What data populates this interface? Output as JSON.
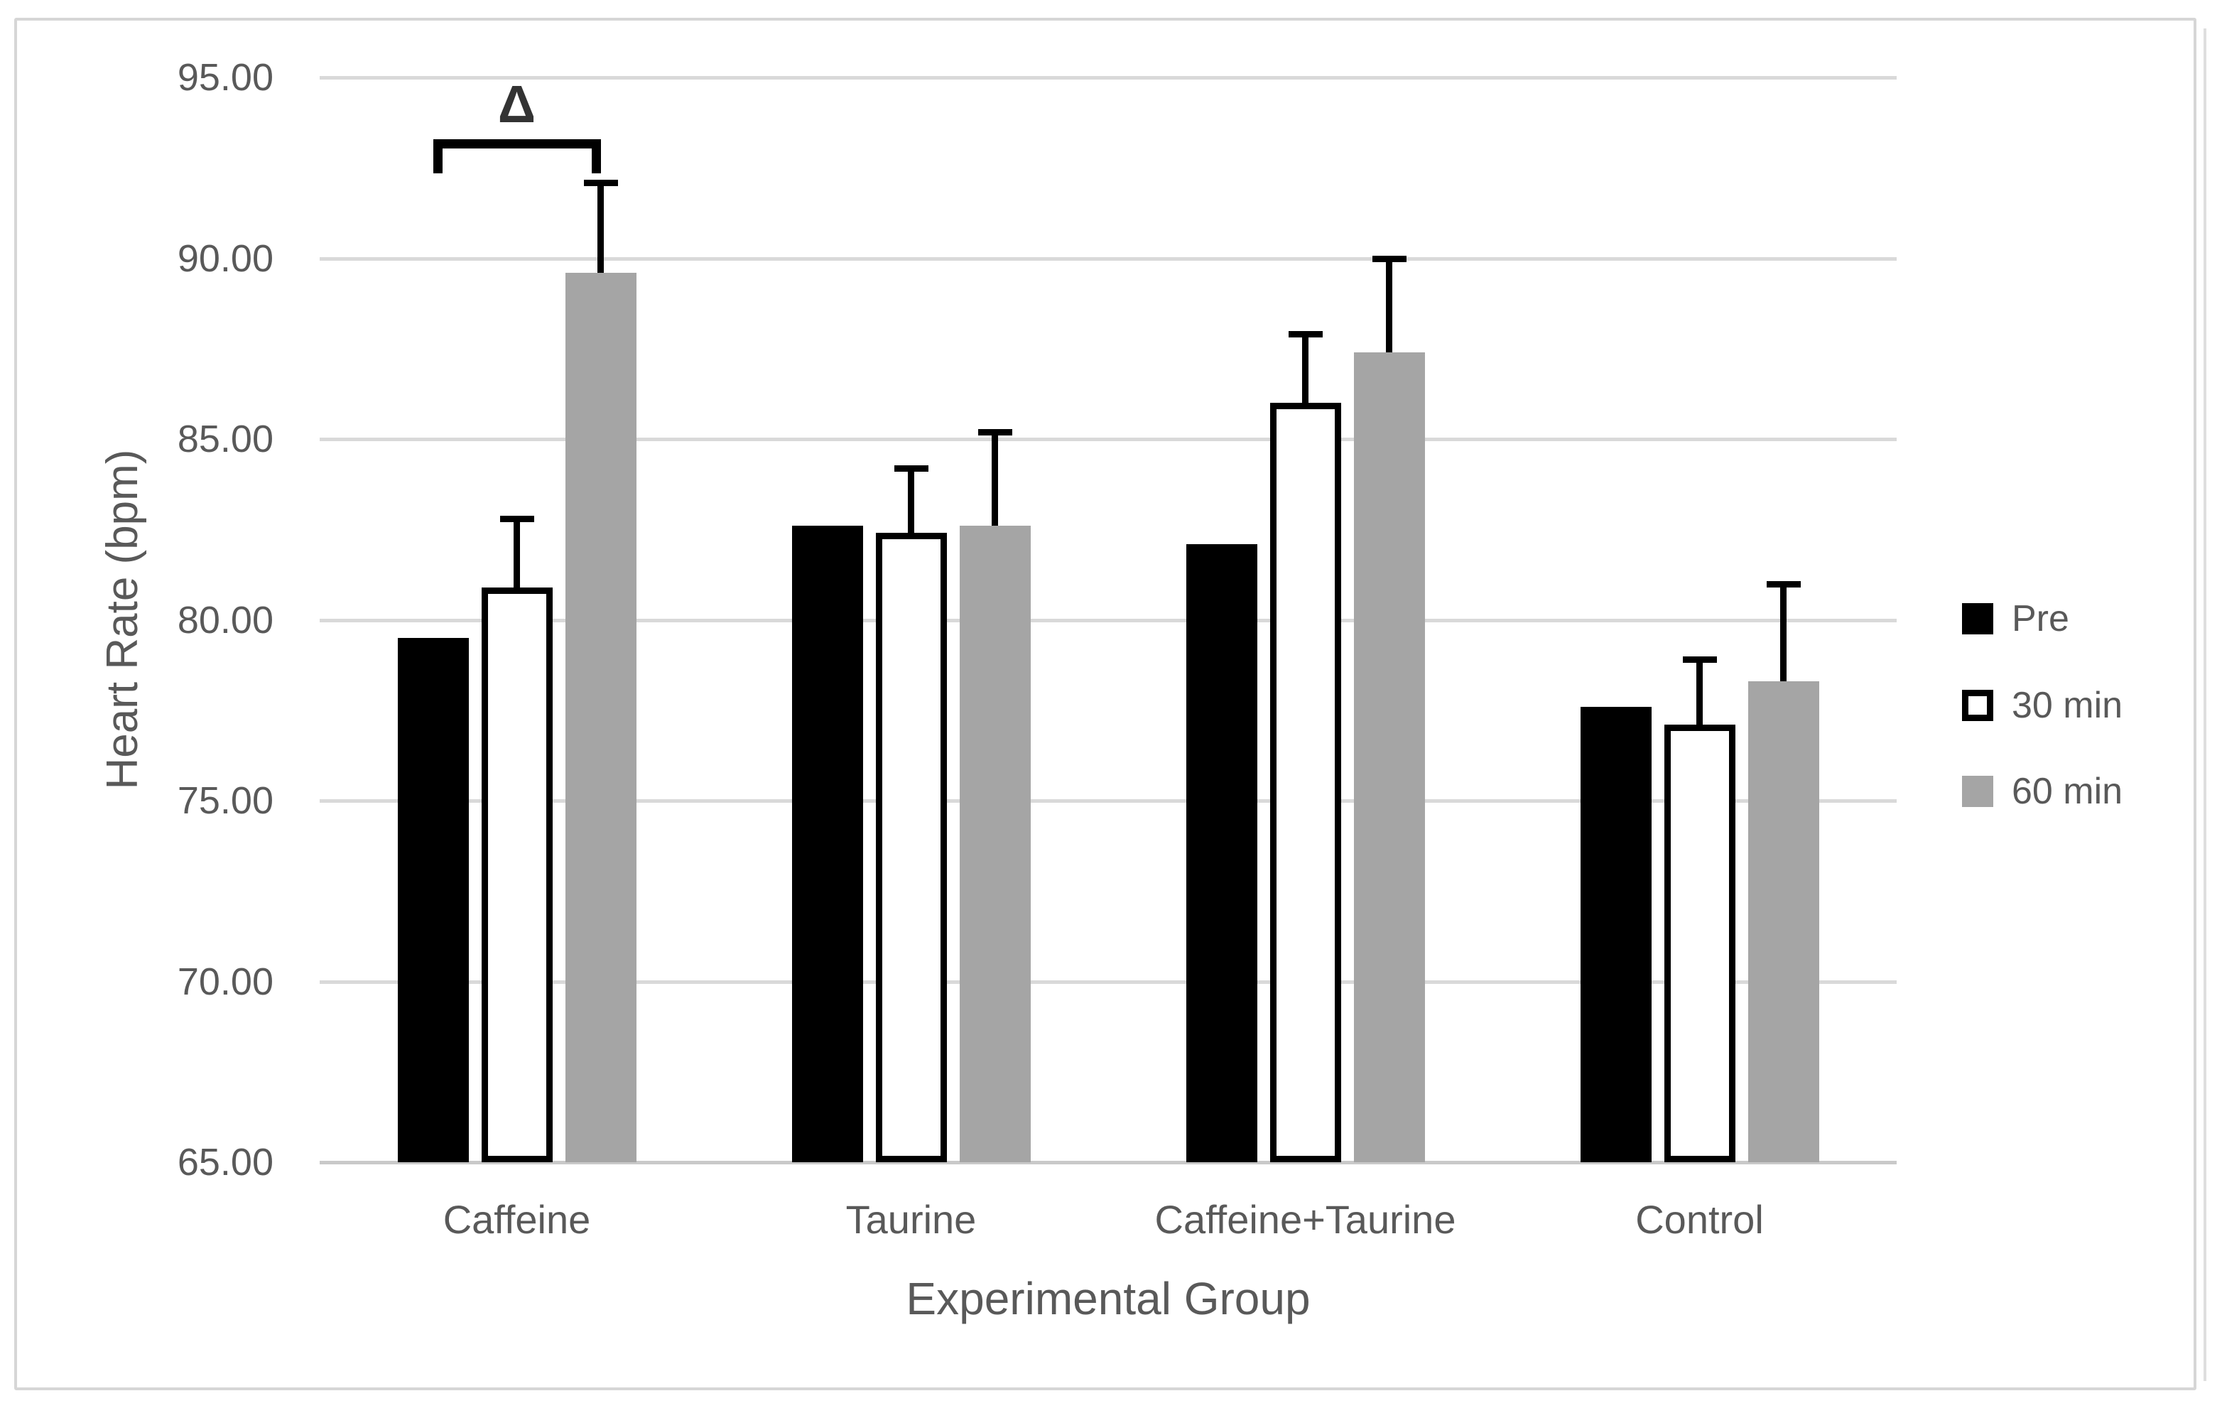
{
  "colors": {
    "background": "#ffffff",
    "frame_border": "#d6d6d6",
    "gridline": "#d9d9d9",
    "axis_text": "#595959",
    "error_bar": "#000000",
    "annotation": "#333333"
  },
  "chart_data": {
    "type": "bar",
    "xlabel": "Experimental Group",
    "ylabel": "Heart Rate (bpm)",
    "categories": [
      "Caffeine",
      "Taurine",
      "Caffeine+Taurine",
      "Control"
    ],
    "series": [
      {
        "name": "Pre",
        "fill": "#000000",
        "border": "#000000",
        "values": [
          79.5,
          82.6,
          82.1,
          77.6
        ],
        "errors": [
          0,
          0,
          0,
          0
        ]
      },
      {
        "name": "30 min",
        "fill": "#ffffff",
        "border": "#000000",
        "values": [
          80.9,
          82.4,
          86.0,
          77.1
        ],
        "errors": [
          1.9,
          1.8,
          1.9,
          1.8
        ]
      },
      {
        "name": "60 min",
        "fill": "#a5a5a5",
        "border": "#a5a5a5",
        "values": [
          89.6,
          82.6,
          87.4,
          78.3
        ],
        "errors": [
          2.5,
          2.6,
          2.6,
          2.7
        ]
      }
    ],
    "ylim": [
      65,
      95
    ],
    "ytick_labels": [
      "95.00",
      "90.00",
      "85.00",
      "80.00",
      "75.00",
      "70.00",
      "65.00"
    ],
    "grid": true,
    "legend_position": "right",
    "annotation": {
      "label": "Δ",
      "category_index": 0,
      "from_series": "Pre",
      "to_series": "60 min"
    }
  }
}
